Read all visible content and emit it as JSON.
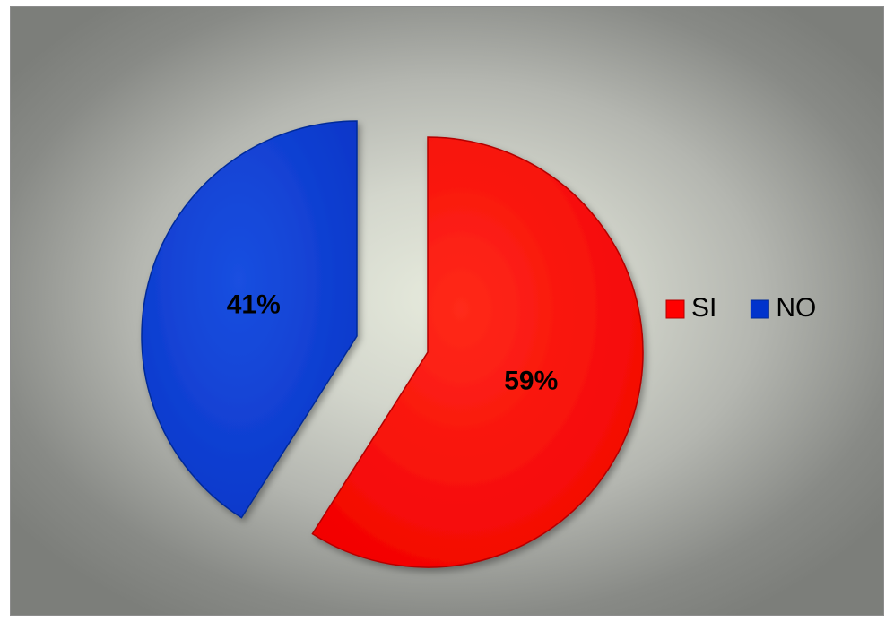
{
  "chart_data": {
    "type": "pie",
    "categories": [
      "SI",
      "NO"
    ],
    "values": [
      59,
      41
    ],
    "data_labels": [
      "59%",
      "41%"
    ],
    "colors": [
      "#ff0000",
      "#0033cc"
    ],
    "exploded": true,
    "legend_position": "right",
    "title": "",
    "start_angle_deg": 0,
    "direction": "clockwise"
  }
}
